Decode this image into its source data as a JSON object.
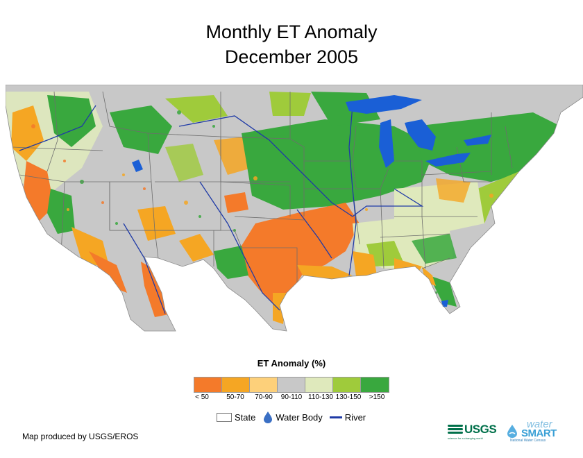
{
  "title": {
    "line1": "Monthly ET Anomaly",
    "line2": "December 2005"
  },
  "legend": {
    "title": "ET Anomaly (%)",
    "classes": [
      {
        "label": "< 50",
        "color": "#f47a2a"
      },
      {
        "label": "50-70",
        "color": "#f5a623"
      },
      {
        "label": "70-90",
        "color": "#fdd07a"
      },
      {
        "label": "90-110",
        "color": "#c8c8c8"
      },
      {
        "label": "110-130",
        "color": "#dfe9bc"
      },
      {
        "label": "130-150",
        "color": "#9fcb3b"
      },
      {
        "label": ">150",
        "color": "#39a83e"
      }
    ],
    "features": {
      "state": "State",
      "water_body": "Water Body",
      "river": "River"
    },
    "water_color": "#1a5fd6",
    "river_color": "#1f3aa6"
  },
  "credit": "Map produced by USGS/EROS",
  "logos": {
    "usgs_word": "USGS",
    "usgs_tagline": "science for a changing world",
    "watersmart_word1": "water",
    "watersmart_word2": "SMART",
    "watersmart_tagline": "National Water Census"
  }
}
